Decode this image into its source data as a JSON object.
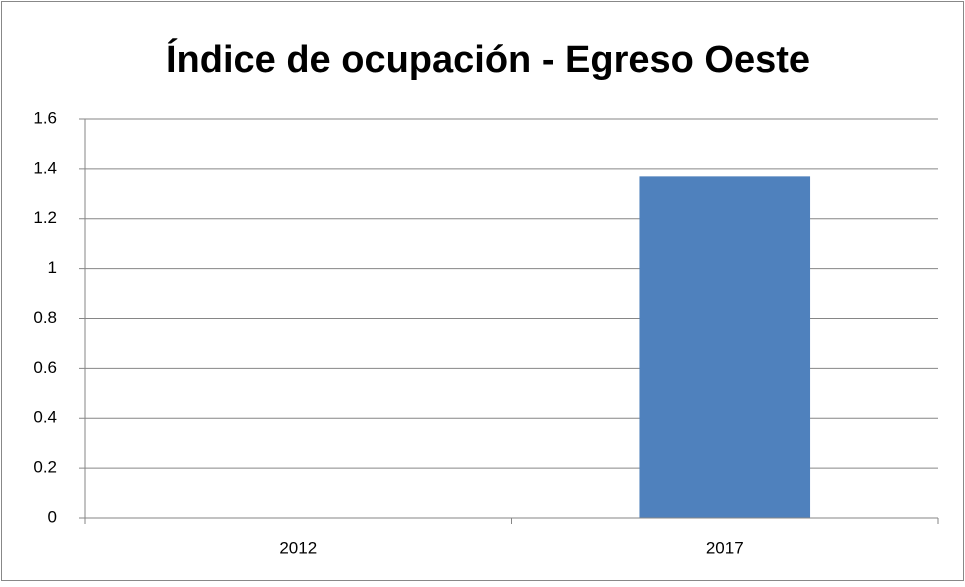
{
  "chart_data": {
    "type": "bar",
    "title": "Índice de ocupación - Egreso Oeste",
    "categories": [
      "2012",
      "2017"
    ],
    "values": [
      0,
      1.37
    ],
    "color": "#4f81bd",
    "ylim": [
      0,
      1.6
    ],
    "yticks": [
      0,
      0.2,
      0.4,
      0.6,
      0.8,
      1,
      1.2,
      1.4,
      1.6
    ],
    "grid": true
  }
}
